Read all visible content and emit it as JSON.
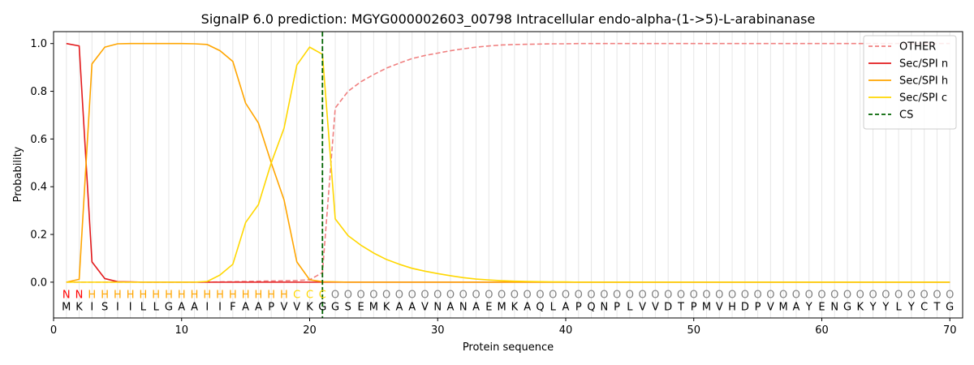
{
  "chart_data": {
    "type": "line",
    "title": "SignalP 6.0 prediction: MGYG000002603_00798 Intracellular endo-alpha-(1->5)-L-arabinanase",
    "xlabel": "Protein sequence",
    "ylabel": "Probability",
    "xlim": [
      0,
      71
    ],
    "ylim": [
      -0.15,
      1.05
    ],
    "x_ticks": [
      0,
      10,
      20,
      30,
      40,
      50,
      60,
      70
    ],
    "y_ticks": [
      0.0,
      0.2,
      0.4,
      0.6,
      0.8,
      1.0
    ],
    "grid": "vertical lines at each residue",
    "legend_position": "top-right",
    "positions": [
      1,
      2,
      3,
      4,
      5,
      6,
      7,
      8,
      9,
      10,
      11,
      12,
      13,
      14,
      15,
      16,
      17,
      18,
      19,
      20,
      21,
      22,
      23,
      24,
      25,
      26,
      27,
      28,
      29,
      30,
      31,
      32,
      33,
      34,
      35,
      36,
      37,
      38,
      39,
      40,
      41,
      42,
      43,
      44,
      45,
      46,
      47,
      48,
      49,
      50,
      51,
      52,
      53,
      54,
      55,
      56,
      57,
      58,
      59,
      60,
      61,
      62,
      63,
      64,
      65,
      66,
      67,
      68,
      69,
      70
    ],
    "sequence": [
      "M",
      "K",
      "I",
      "S",
      "I",
      "I",
      "L",
      "L",
      "G",
      "A",
      "A",
      "I",
      "I",
      "F",
      "A",
      "A",
      "P",
      "V",
      "V",
      "K",
      "G",
      "G",
      "S",
      "E",
      "M",
      "K",
      "A",
      "A",
      "V",
      "N",
      "A",
      "N",
      "A",
      "E",
      "M",
      "K",
      "A",
      "Q",
      "L",
      "A",
      "P",
      "Q",
      "N",
      "P",
      "L",
      "V",
      "V",
      "D",
      "T",
      "P",
      "M",
      "V",
      "H",
      "D",
      "P",
      "V",
      "M",
      "A",
      "Y",
      "E",
      "N",
      "G",
      "K",
      "Y",
      "Y",
      "L",
      "Y",
      "C",
      "T",
      "G"
    ],
    "labels": [
      "N",
      "N",
      "H",
      "H",
      "H",
      "H",
      "H",
      "H",
      "H",
      "H",
      "H",
      "H",
      "H",
      "H",
      "H",
      "H",
      "H",
      "H",
      "C",
      "C",
      "C",
      "O",
      "O",
      "O",
      "O",
      "O",
      "O",
      "O",
      "O",
      "O",
      "O",
      "O",
      "O",
      "O",
      "O",
      "O",
      "O",
      "O",
      "O",
      "O",
      "O",
      "O",
      "O",
      "O",
      "O",
      "O",
      "O",
      "O",
      "O",
      "O",
      "O",
      "O",
      "O",
      "O",
      "O",
      "O",
      "O",
      "O",
      "O",
      "O",
      "O",
      "O",
      "O",
      "O",
      "O",
      "O",
      "O",
      "O",
      "O",
      "O"
    ],
    "label_colors": {
      "N": "#ff0000",
      "H": "#ffa500",
      "C": "#ffd700",
      "O": "#808080"
    },
    "cleavage_site": 21,
    "series": [
      {
        "name": "OTHER",
        "color": "#f08080",
        "dash": true,
        "values": [
          0.0,
          0.0,
          0.0,
          0.0,
          0.0,
          0.0,
          0.0,
          0.0,
          0.0,
          0.0,
          0.0,
          0.0,
          0.001,
          0.002,
          0.003,
          0.004,
          0.005,
          0.006,
          0.007,
          0.01,
          0.04,
          0.73,
          0.8,
          0.84,
          0.87,
          0.897,
          0.918,
          0.937,
          0.95,
          0.96,
          0.97,
          0.978,
          0.985,
          0.99,
          0.994,
          0.996,
          0.997,
          0.998,
          0.999,
          0.999,
          1.0,
          1.0,
          1.0,
          1.0,
          1.0,
          1.0,
          1.0,
          1.0,
          1.0,
          1.0,
          1.0,
          1.0,
          1.0,
          1.0,
          1.0,
          1.0,
          1.0,
          1.0,
          1.0,
          1.0,
          1.0,
          1.0,
          1.0,
          1.0,
          1.0,
          1.0,
          1.0,
          1.0,
          1.0,
          1.0
        ]
      },
      {
        "name": "Sec/SPI n",
        "color": "#e31a1c",
        "dash": false,
        "values": [
          1.0,
          0.99,
          0.085,
          0.015,
          0.002,
          0.001,
          0.0,
          0.0,
          0.0,
          0.0,
          0.0,
          0.0,
          0.0,
          0.0,
          0.0,
          0.0,
          0.0,
          0.0,
          0.0,
          0.0,
          0.0,
          0.0,
          0.0,
          0.0,
          0.0,
          0.0,
          0.0,
          0.0,
          0.0,
          0.0,
          0.0,
          0.0,
          0.0,
          0.0,
          0.0,
          0.0,
          0.0,
          0.0,
          0.0,
          0.0,
          0.0,
          0.0,
          0.0,
          0.0,
          0.0,
          0.0,
          0.0,
          0.0,
          0.0,
          0.0,
          0.0,
          0.0,
          0.0,
          0.0,
          0.0,
          0.0,
          0.0,
          0.0,
          0.0,
          0.0,
          0.0,
          0.0,
          0.0,
          0.0,
          0.0,
          0.0,
          0.0,
          0.0,
          0.0,
          0.0
        ]
      },
      {
        "name": "Sec/SPI h",
        "color": "#ffa500",
        "dash": false,
        "values": [
          0.0,
          0.012,
          0.915,
          0.985,
          0.999,
          1.0,
          1.0,
          1.0,
          1.0,
          1.0,
          0.999,
          0.996,
          0.97,
          0.925,
          0.75,
          0.667,
          0.5,
          0.345,
          0.085,
          0.01,
          0.002,
          0.001,
          0.0,
          0.0,
          0.0,
          0.0,
          0.0,
          0.0,
          0.0,
          0.0,
          0.0,
          0.0,
          0.0,
          0.0,
          0.0,
          0.0,
          0.0,
          0.0,
          0.0,
          0.0,
          0.0,
          0.0,
          0.0,
          0.0,
          0.0,
          0.0,
          0.0,
          0.0,
          0.0,
          0.0,
          0.0,
          0.0,
          0.0,
          0.0,
          0.0,
          0.0,
          0.0,
          0.0,
          0.0,
          0.0,
          0.0,
          0.0,
          0.0,
          0.0,
          0.0,
          0.0,
          0.0,
          0.0,
          0.0,
          0.0
        ]
      },
      {
        "name": "Sec/SPI c",
        "color": "#ffd700",
        "dash": false,
        "values": [
          0.0,
          0.0,
          0.0,
          0.0,
          0.0,
          0.0,
          0.0,
          0.0,
          0.0,
          0.0,
          0.0,
          0.003,
          0.03,
          0.075,
          0.25,
          0.325,
          0.5,
          0.645,
          0.91,
          0.985,
          0.955,
          0.265,
          0.195,
          0.155,
          0.122,
          0.095,
          0.075,
          0.058,
          0.046,
          0.036,
          0.027,
          0.019,
          0.013,
          0.009,
          0.006,
          0.004,
          0.003,
          0.002,
          0.001,
          0.001,
          0.0,
          0.0,
          0.0,
          0.0,
          0.0,
          0.0,
          0.0,
          0.0,
          0.0,
          0.0,
          0.0,
          0.0,
          0.0,
          0.0,
          0.0,
          0.0,
          0.0,
          0.0,
          0.0,
          0.0,
          0.0,
          0.0,
          0.0,
          0.0,
          0.0,
          0.0,
          0.0,
          0.0,
          0.0,
          0.0
        ]
      }
    ],
    "cs_legend": {
      "name": "CS",
      "color": "#006400",
      "dash": true
    }
  }
}
